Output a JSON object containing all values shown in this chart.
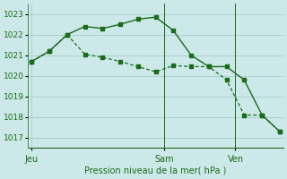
{
  "background_color": "#cce8e8",
  "grid_color": "#aacccc",
  "line_color": "#1a6b1a",
  "title": "Pression niveau de la mer( hPa )",
  "ylim": [
    1016.5,
    1023.5
  ],
  "yticks": [
    1017,
    1018,
    1019,
    1020,
    1021,
    1022,
    1023
  ],
  "xlim": [
    -0.2,
    14.2
  ],
  "x_day_labels": [
    {
      "label": "Jeu",
      "x": 0
    },
    {
      "label": "Sam",
      "x": 7.5
    },
    {
      "label": "Ven",
      "x": 11.5
    }
  ],
  "x_vlines": [
    7.5,
    11.5
  ],
  "series1_x": [
    0,
    1,
    2,
    3,
    4,
    5,
    6,
    7,
    8,
    9,
    10,
    11,
    12,
    13,
    14
  ],
  "series1_y": [
    1020.7,
    1021.2,
    1022.0,
    1022.4,
    1022.3,
    1022.5,
    1022.75,
    1022.85,
    1022.2,
    1021.0,
    1020.45,
    1020.45,
    1019.8,
    1018.1,
    1017.3
  ],
  "series2_x": [
    0,
    1,
    2,
    3,
    4,
    5,
    6,
    7,
    8,
    9,
    10,
    11,
    12,
    13,
    14
  ],
  "series2_y": [
    1020.7,
    1021.2,
    1022.0,
    1021.05,
    1020.9,
    1020.7,
    1020.45,
    1020.2,
    1020.5,
    1020.45,
    1020.45,
    1019.8,
    1018.1,
    1018.1,
    1017.3
  ],
  "figsize": [
    3.2,
    2.0
  ],
  "dpi": 100
}
